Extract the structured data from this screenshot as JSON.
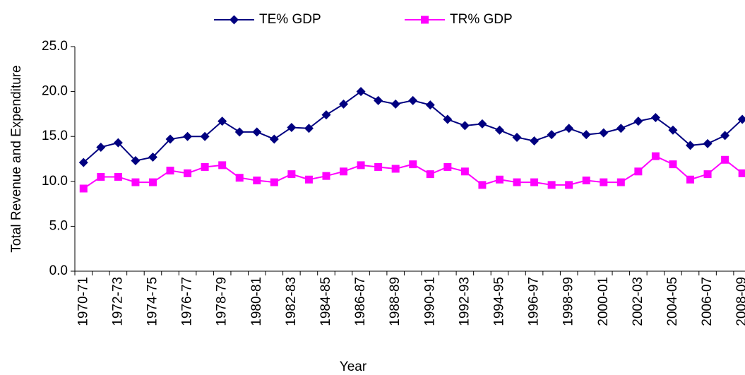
{
  "chart_data": {
    "type": "line",
    "x_label": "Year",
    "y_label": "Total Revenue and Expenditure",
    "legend": "top",
    "grid": false,
    "categories": [
      "1970-71",
      null,
      "1972-73",
      null,
      "1974-75",
      null,
      "1976-77",
      null,
      "1978-79",
      null,
      "1980-81",
      null,
      "1982-83",
      null,
      "1984-85",
      null,
      "1986-87",
      null,
      "1988-89",
      null,
      "1990-91",
      null,
      "1992-93",
      null,
      "1994-95",
      null,
      "1996-97",
      null,
      "1998-99",
      null,
      "2000-01",
      null,
      "2002-03",
      null,
      "2004-05",
      null,
      "2006-07",
      null,
      "2008-09"
    ],
    "series": [
      {
        "name": "TE% GDP",
        "color": "#000080",
        "marker": "diamond",
        "values": [
          12.1,
          13.8,
          14.3,
          12.3,
          12.7,
          14.7,
          15.0,
          15.0,
          16.7,
          15.5,
          15.5,
          14.7,
          16.0,
          15.9,
          17.4,
          18.6,
          20.0,
          19.0,
          18.6,
          19.0,
          18.5,
          16.9,
          16.2,
          16.4,
          15.7,
          14.9,
          14.5,
          15.2,
          15.9,
          15.2,
          15.4,
          15.9,
          16.7,
          17.1,
          15.7,
          14.0,
          14.2,
          15.1,
          16.9
        ]
      },
      {
        "name": "TR% GDP",
        "color": "#ff00ff",
        "marker": "square",
        "values": [
          9.2,
          10.5,
          10.5,
          9.9,
          9.9,
          11.2,
          10.9,
          11.6,
          11.8,
          10.4,
          10.1,
          9.9,
          10.8,
          10.2,
          10.6,
          11.1,
          11.8,
          11.6,
          11.4,
          11.9,
          10.8,
          11.6,
          11.1,
          9.6,
          10.2,
          9.9,
          9.9,
          9.6,
          9.6,
          10.1,
          9.9,
          9.9,
          11.1,
          12.8,
          11.9,
          10.2,
          10.8,
          12.4,
          10.9
        ]
      }
    ],
    "ylim": [
      0,
      25
    ],
    "yticks": [
      {
        "value": 0,
        "label": "0.0"
      },
      {
        "value": 5,
        "label": "5.0"
      },
      {
        "value": 10,
        "label": "10.0"
      },
      {
        "value": 15,
        "label": "15.0"
      },
      {
        "value": 20,
        "label": "20.0"
      },
      {
        "value": 25,
        "label": "25.0"
      }
    ]
  }
}
